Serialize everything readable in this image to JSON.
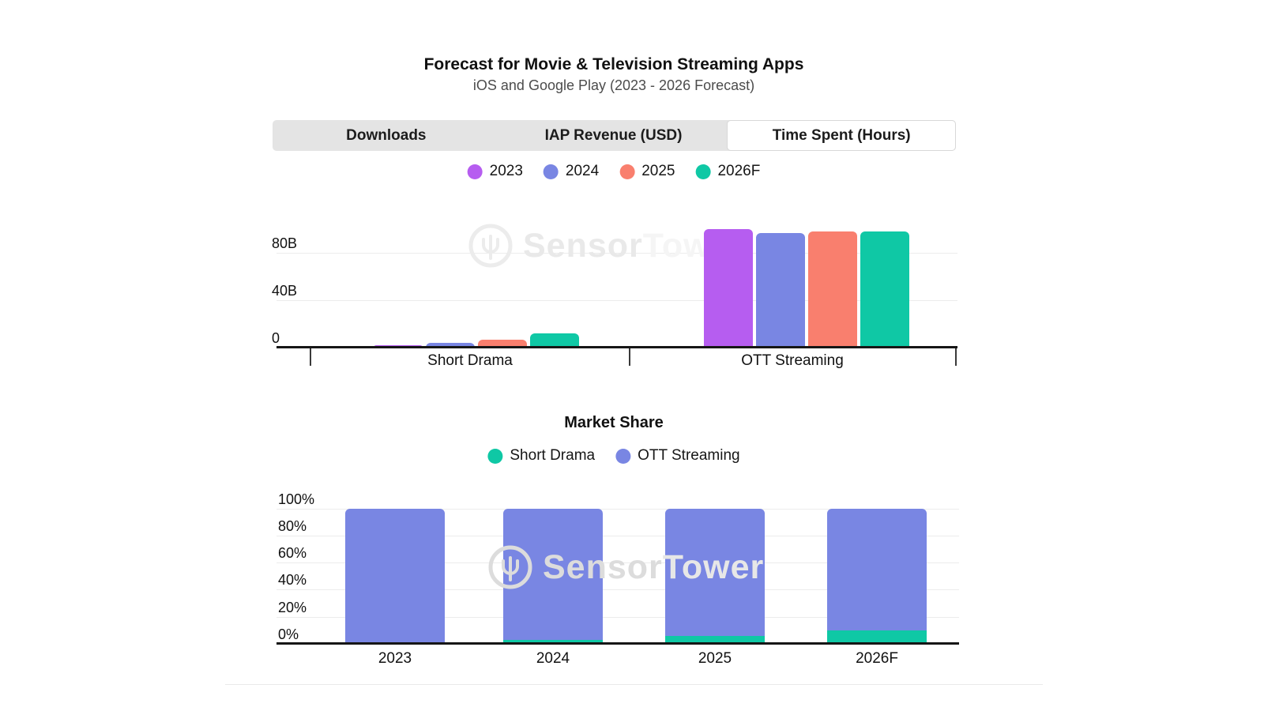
{
  "page": {
    "title": "Forecast for Movie & Television Streaming Apps",
    "subtitle": "iOS and Google Play (2023 - 2026 Forecast)"
  },
  "tabs": [
    {
      "label": "Downloads",
      "active": false
    },
    {
      "label": "IAP Revenue (USD)",
      "active": false
    },
    {
      "label": "Time Spent (Hours)",
      "active": true
    }
  ],
  "watermark": {
    "brand_bold": "Sensor",
    "brand_light": "Tower"
  },
  "colors": {
    "year_2023": "#b65df0",
    "year_2024": "#7986e3",
    "year_2025": "#f97f6e",
    "year_2026f": "#0fc8a5",
    "short_drama": "#0fc8a5",
    "ott_streaming": "#7986e3",
    "tab_bar_bg": "#e4e4e4",
    "active_tab_bg": "#ffffff",
    "gridline": "#ececec",
    "axis": "#161616"
  },
  "chart_data": [
    {
      "type": "bar",
      "title": "Time Spent (Hours)",
      "categories": [
        "Short Drama",
        "OTT Streaming"
      ],
      "series": [
        {
          "name": "2023",
          "color": "#b65df0",
          "values": [
            2,
            100
          ]
        },
        {
          "name": "2024",
          "color": "#7986e3",
          "values": [
            4,
            97
          ]
        },
        {
          "name": "2025",
          "color": "#f97f6e",
          "values": [
            7,
            98
          ]
        },
        {
          "name": "2026F",
          "color": "#0fc8a5",
          "values": [
            12,
            98
          ]
        }
      ],
      "yticks": [
        {
          "label": "0",
          "value": 0
        },
        {
          "label": "40B",
          "value": 40
        },
        {
          "label": "80B",
          "value": 80
        }
      ],
      "ylim": [
        0,
        120
      ],
      "unit": "billions of hours",
      "grid": true,
      "legend_position": "top"
    },
    {
      "type": "stacked-bar",
      "title": "Market Share",
      "categories": [
        "2023",
        "2024",
        "2025",
        "2026F"
      ],
      "series": [
        {
          "name": "Short Drama",
          "color": "#0fc8a5",
          "values": [
            1,
            3,
            6,
            10
          ]
        },
        {
          "name": "OTT Streaming",
          "color": "#7986e3",
          "values": [
            99,
            97,
            94,
            90
          ]
        }
      ],
      "yticks": [
        {
          "label": "0%",
          "value": 0
        },
        {
          "label": "20%",
          "value": 20
        },
        {
          "label": "40%",
          "value": 40
        },
        {
          "label": "60%",
          "value": 60
        },
        {
          "label": "80%",
          "value": 80
        },
        {
          "label": "100%",
          "value": 100
        }
      ],
      "ylim": [
        0,
        100
      ],
      "unit": "percent",
      "grid": true,
      "legend_position": "top"
    }
  ]
}
